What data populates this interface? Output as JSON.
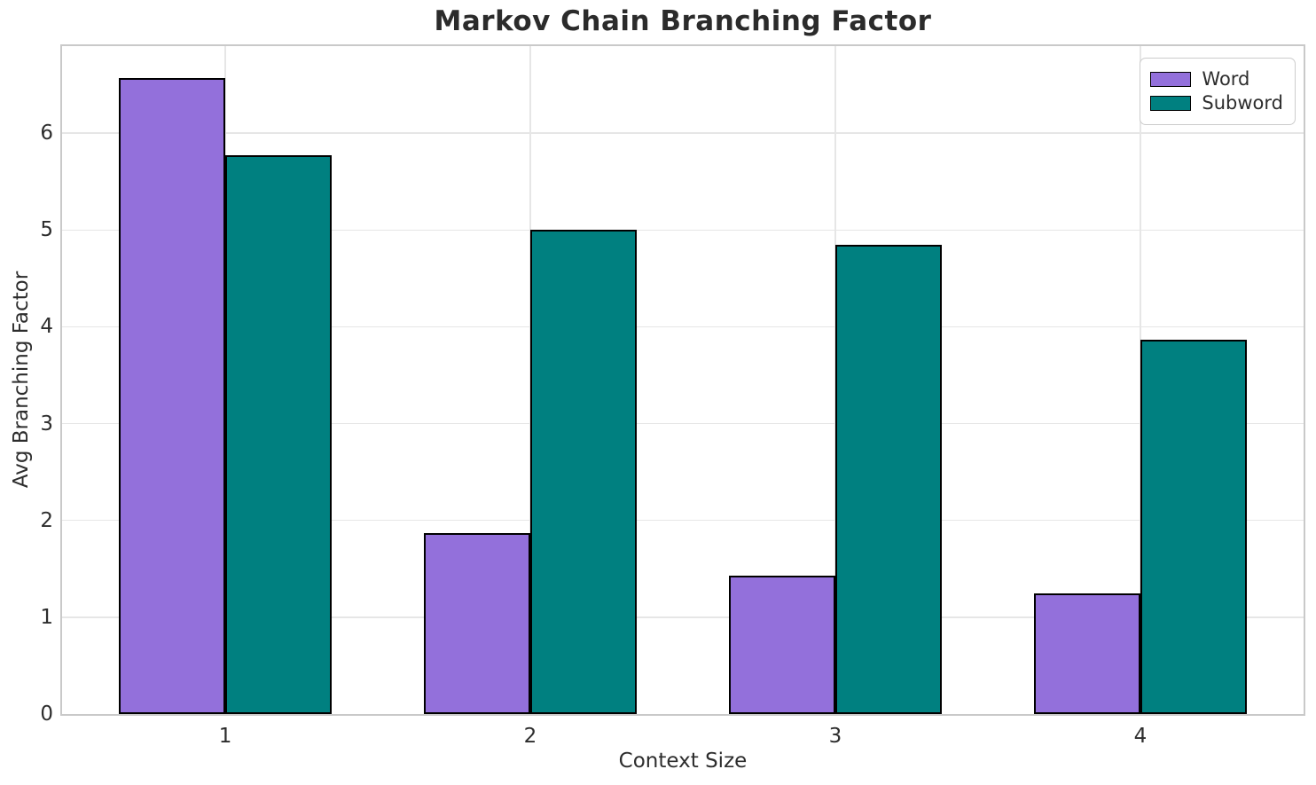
{
  "chart_data": {
    "type": "bar",
    "title": "Markov Chain Branching Factor",
    "xlabel": "Context Size",
    "ylabel": "Avg Branching Factor",
    "categories": [
      "1",
      "2",
      "3",
      "4"
    ],
    "series": [
      {
        "name": "Word",
        "color": "#9370DB",
        "values": [
          6.57,
          1.87,
          1.43,
          1.25
        ]
      },
      {
        "name": "Subword",
        "color": "#008080",
        "values": [
          5.77,
          5.0,
          4.85,
          3.87
        ]
      }
    ],
    "yticks": [
      0,
      1,
      2,
      3,
      4,
      5,
      6
    ],
    "ylim": [
      0,
      6.9
    ],
    "bar_width": 0.35,
    "bar_edge_color": "#000000",
    "grid": true,
    "gridlines": "horizontal-and-vertical",
    "legend_position": "upper right",
    "colors": {
      "grid": "#e6e6e6",
      "spine": "#c9c9c9",
      "text": "#2d2d2d",
      "title": "#2b2b2b",
      "background": "#ffffff"
    }
  }
}
